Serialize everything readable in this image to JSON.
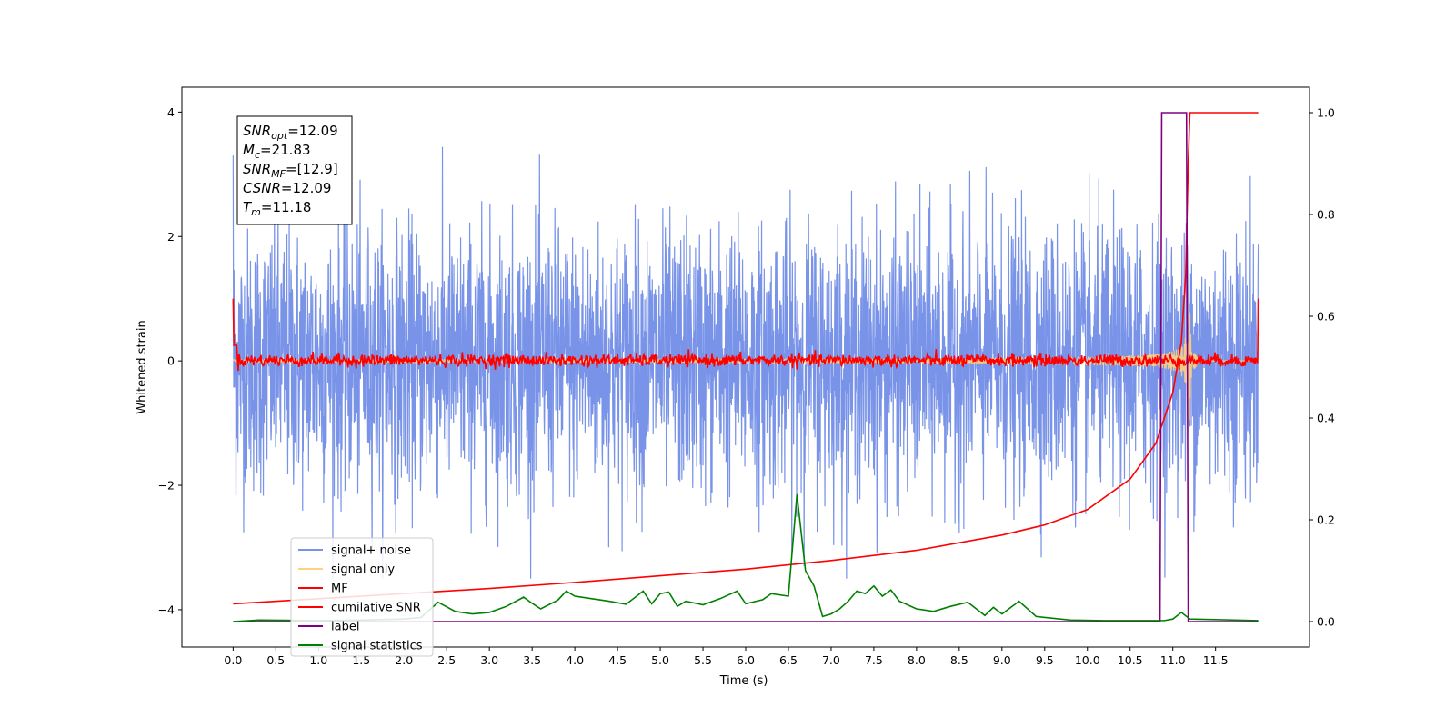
{
  "chart_data": {
    "type": "line",
    "xlabel": "Time (s)",
    "ylabel": "Whitened strain",
    "xlim": [
      -0.6,
      12.6
    ],
    "ylim": [
      -4.6,
      4.4
    ],
    "y2lim": [
      -0.05,
      1.05
    ],
    "xticks": [
      "0.0",
      "0.5",
      "1.0",
      "1.5",
      "2.0",
      "2.5",
      "3.0",
      "3.5",
      "4.0",
      "4.5",
      "5.0",
      "5.5",
      "6.0",
      "6.5",
      "7.0",
      "7.5",
      "8.0",
      "8.5",
      "9.0",
      "9.5",
      "10.0",
      "10.5",
      "11.0",
      "11.5"
    ],
    "yticks": [
      "−4",
      "−2",
      "0",
      "2",
      "4"
    ],
    "y2ticks": [
      "0.0",
      "0.2",
      "0.4",
      "0.6",
      "0.8",
      "1.0"
    ],
    "annotation": [
      {
        "sym": "SNR",
        "sub": "opt",
        "val": "=12.09"
      },
      {
        "sym": "M",
        "sub": "c",
        "val": "=21.83"
      },
      {
        "sym": "SNR",
        "sub": "MF",
        "val": "=[12.9]"
      },
      {
        "sym": "CSNR",
        "sub": "",
        "val": "=12.09"
      },
      {
        "sym": "T",
        "sub": "m",
        "val": "=11.18"
      }
    ],
    "legend_position": "lower-left",
    "series": [
      {
        "name": "signal+ noise",
        "color": "#7893e8",
        "axis": "left",
        "approx_range": [
          -3.5,
          4.0
        ],
        "x_range": [
          0,
          12
        ]
      },
      {
        "name": "signal only",
        "color": "#ffd27f",
        "axis": "left",
        "merger_time": 11.18
      },
      {
        "name": "MF",
        "color": "#ff0000",
        "axis": "left",
        "x_range": [
          0,
          12
        ]
      },
      {
        "name": "cumilative SNR",
        "color": "#ff0000",
        "axis": "right",
        "x": [
          0,
          1,
          2,
          3,
          4,
          5,
          6,
          7,
          8,
          9,
          9.5,
          10,
          10.5,
          10.8,
          11.0,
          11.1,
          11.15,
          11.18,
          11.2,
          12.0
        ],
        "y": [
          0.035,
          0.045,
          0.055,
          0.065,
          0.077,
          0.09,
          0.103,
          0.12,
          0.14,
          0.17,
          0.19,
          0.22,
          0.28,
          0.35,
          0.45,
          0.55,
          0.68,
          0.9,
          1.0,
          1.0
        ]
      },
      {
        "name": "label",
        "color": "#800080",
        "axis": "right",
        "x": [
          0,
          10.85,
          10.87,
          11.16,
          11.18,
          12.0
        ],
        "y": [
          0,
          0,
          1,
          1,
          0,
          0
        ]
      },
      {
        "name": "signal statistics",
        "color": "#008000",
        "axis": "right",
        "x": [
          0,
          0.3,
          1.0,
          1.5,
          2.0,
          2.2,
          2.4,
          2.6,
          2.8,
          3.0,
          3.2,
          3.4,
          3.5,
          3.6,
          3.8,
          3.9,
          4.0,
          4.2,
          4.4,
          4.6,
          4.8,
          4.9,
          5.0,
          5.1,
          5.2,
          5.3,
          5.5,
          5.7,
          5.9,
          6.0,
          6.2,
          6.3,
          6.5,
          6.6,
          6.7,
          6.8,
          6.9,
          7.0,
          7.1,
          7.2,
          7.3,
          7.4,
          7.5,
          7.6,
          7.7,
          7.8,
          8.0,
          8.2,
          8.4,
          8.6,
          8.7,
          8.8,
          8.9,
          9.0,
          9.2,
          9.4,
          9.8,
          10.2,
          10.7,
          10.9,
          11.0,
          11.1,
          11.2,
          12.0
        ],
        "y": [
          0.0,
          0.003,
          0.002,
          0.003,
          0.005,
          0.008,
          0.038,
          0.02,
          0.015,
          0.018,
          0.03,
          0.048,
          0.036,
          0.025,
          0.042,
          0.06,
          0.05,
          0.045,
          0.04,
          0.034,
          0.06,
          0.035,
          0.055,
          0.058,
          0.03,
          0.04,
          0.033,
          0.045,
          0.06,
          0.035,
          0.043,
          0.055,
          0.05,
          0.25,
          0.1,
          0.07,
          0.01,
          0.015,
          0.025,
          0.04,
          0.06,
          0.055,
          0.07,
          0.05,
          0.062,
          0.04,
          0.025,
          0.02,
          0.03,
          0.038,
          0.025,
          0.012,
          0.028,
          0.015,
          0.04,
          0.01,
          0.003,
          0.002,
          0.002,
          0.002,
          0.005,
          0.018,
          0.005,
          0.002
        ]
      }
    ]
  }
}
